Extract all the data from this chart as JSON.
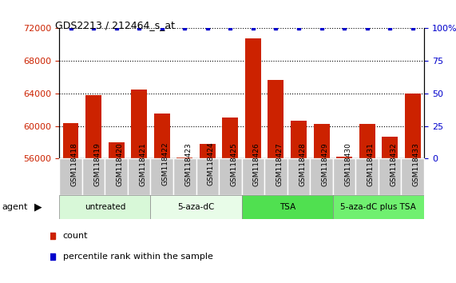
{
  "title": "GDS2213 / 212464_s_at",
  "samples": [
    "GSM118418",
    "GSM118419",
    "GSM118420",
    "GSM118421",
    "GSM118422",
    "GSM118423",
    "GSM118424",
    "GSM118425",
    "GSM118426",
    "GSM118427",
    "GSM118428",
    "GSM118429",
    "GSM118430",
    "GSM118431",
    "GSM118432",
    "GSM118433"
  ],
  "counts": [
    60300,
    63800,
    58000,
    64500,
    61500,
    56100,
    57800,
    61000,
    70800,
    65700,
    60600,
    60200,
    56200,
    60200,
    58700,
    64000
  ],
  "percentile": [
    100,
    100,
    100,
    100,
    100,
    100,
    100,
    100,
    100,
    100,
    100,
    100,
    100,
    100,
    100,
    100
  ],
  "ylim_left": [
    56000,
    72000
  ],
  "ylim_right": [
    0,
    100
  ],
  "yticks_left": [
    56000,
    60000,
    64000,
    68000,
    72000
  ],
  "yticks_right": [
    0,
    25,
    50,
    75,
    100
  ],
  "bar_color": "#cc2200",
  "percentile_color": "#0000cc",
  "plot_bg": "#ffffff",
  "tick_area_color": "#c8c8c8",
  "groups": [
    {
      "label": "untreated",
      "start": 0,
      "end": 3,
      "color": "#d8f8d8"
    },
    {
      "label": "5-aza-dC",
      "start": 4,
      "end": 7,
      "color": "#e8fce8"
    },
    {
      "label": "TSA",
      "start": 8,
      "end": 11,
      "color": "#50e050"
    },
    {
      "label": "5-aza-dC plus TSA",
      "start": 12,
      "end": 15,
      "color": "#70f070"
    }
  ],
  "legend_count_color": "#cc2200",
  "legend_percentile_color": "#0000cc",
  "agent_label": "agent",
  "count_label": "count",
  "percentile_label": "percentile rank within the sample"
}
